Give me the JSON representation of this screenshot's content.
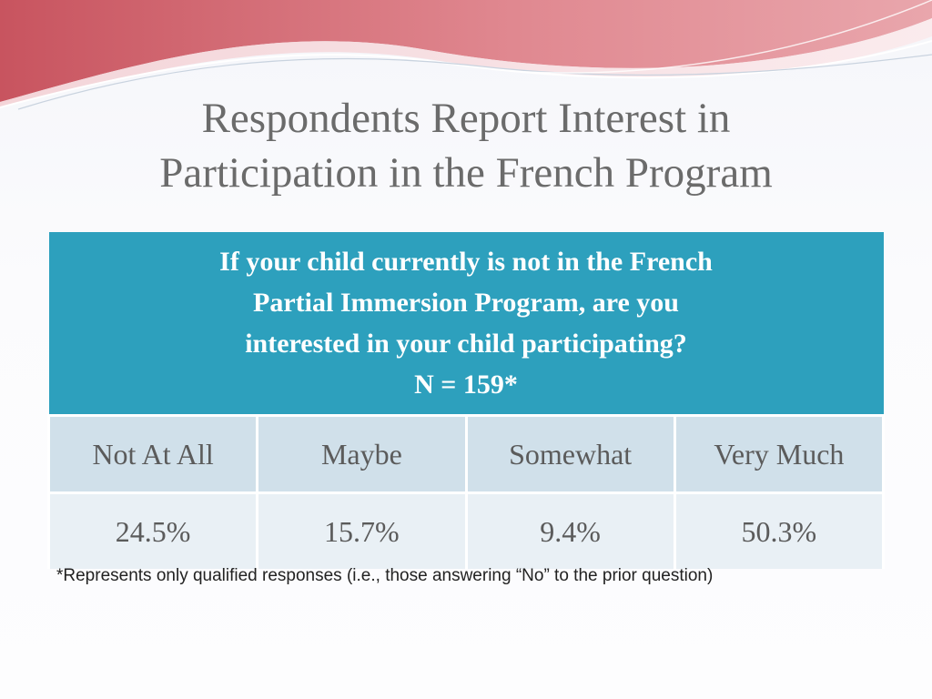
{
  "title": {
    "line1": "Respondents Report Interest in",
    "line2": "Participation in the French Program"
  },
  "table": {
    "question_lines": [
      "If your child currently is not in the French",
      "Partial Immersion Program, are you",
      "interested in your child participating?",
      "N = 159*"
    ],
    "columns": [
      "Not At All",
      "Maybe",
      "Somewhat",
      "Very Much"
    ],
    "values": [
      "24.5%",
      "15.7%",
      "9.4%",
      "50.3%"
    ]
  },
  "footnote": "*Represents only qualified responses (i.e., those answering “No” to the prior question)",
  "colors": {
    "header": "#2da0bd",
    "label_row": "#d0e0ea",
    "value_row": "#e9f0f5",
    "wave_accent": "#d9707a"
  }
}
